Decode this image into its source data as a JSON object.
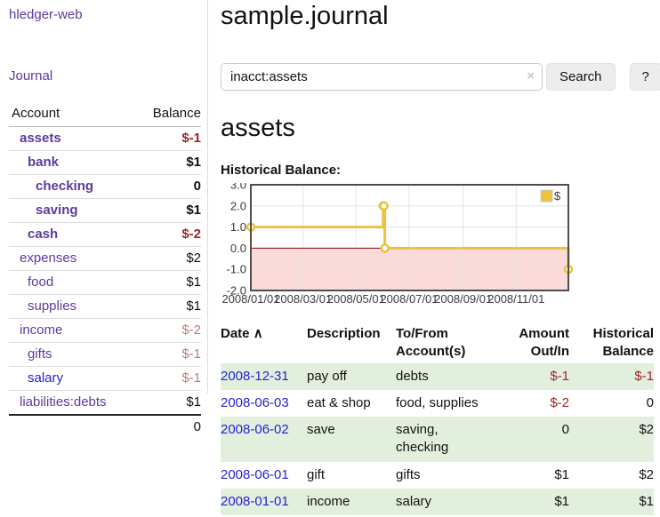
{
  "app": {
    "brand": "hledger-web"
  },
  "colors": {
    "link_purple": "#5d3a9e",
    "link_blue": "#2323d6",
    "negative_strong": "#a02429",
    "negative_soft": "#c07b7b",
    "row_stripe_green": "#e3efdd",
    "chart_line": "#edc240",
    "chart_negative_fill": "#fbdada",
    "chart_zero_line": "#990000",
    "chart_grid": "#e3e3e3",
    "chart_border": "#4d4d4d"
  },
  "sidebar": {
    "journal_label": "Journal",
    "accounts_table": {
      "headers": {
        "account": "Account",
        "balance": "Balance"
      },
      "rows": [
        {
          "name": "assets",
          "depth": 1,
          "bold": true,
          "link_color": "purple",
          "balance": "$-1",
          "balance_tone": "neg-strong"
        },
        {
          "name": "bank",
          "depth": 2,
          "bold": true,
          "link_color": "purple",
          "balance": "$1",
          "balance_tone": ""
        },
        {
          "name": "checking",
          "depth": 3,
          "bold": true,
          "link_color": "purple",
          "balance": "0",
          "balance_tone": ""
        },
        {
          "name": "saving",
          "depth": 3,
          "bold": true,
          "link_color": "purple",
          "balance": "$1",
          "balance_tone": ""
        },
        {
          "name": "cash",
          "depth": 2,
          "bold": true,
          "link_color": "purple",
          "balance": "$-2",
          "balance_tone": "neg-strong"
        },
        {
          "name": "expenses",
          "depth": 1,
          "bold": false,
          "link_color": "purple",
          "balance": "$2",
          "balance_tone": ""
        },
        {
          "name": "food",
          "depth": 2,
          "bold": false,
          "link_color": "purple",
          "balance": "$1",
          "balance_tone": ""
        },
        {
          "name": "supplies",
          "depth": 2,
          "bold": false,
          "link_color": "purple",
          "balance": "$1",
          "balance_tone": ""
        },
        {
          "name": "income",
          "depth": 1,
          "bold": false,
          "link_color": "purple",
          "balance": "$-2",
          "balance_tone": "neg-soft"
        },
        {
          "name": "gifts",
          "depth": 2,
          "bold": false,
          "link_color": "purple",
          "balance": "$-1",
          "balance_tone": "neg-soft"
        },
        {
          "name": "salary",
          "depth": 2,
          "bold": false,
          "link_color": "blue",
          "balance": "$-1",
          "balance_tone": "neg-soft"
        },
        {
          "name": "liabilities:debts",
          "depth": 1,
          "bold": false,
          "link_color": "purple",
          "balance": "$1",
          "balance_tone": ""
        }
      ],
      "total": "0"
    }
  },
  "main": {
    "title": "sample.journal",
    "search": {
      "value": "inacct:assets",
      "clear_icon": "×",
      "button_label": "Search",
      "help_label": "?"
    },
    "section_title": "assets",
    "chart_label": "Historical Balance:"
  },
  "chart_data": {
    "type": "line",
    "step": true,
    "series": [
      {
        "name": "$",
        "points": [
          [
            "2008-01-01",
            1
          ],
          [
            "2008-06-01",
            2
          ],
          [
            "2008-06-02",
            2
          ],
          [
            "2008-06-03",
            0
          ],
          [
            "2008-12-31",
            -1
          ]
        ]
      }
    ],
    "xlim": [
      "2008-01-01",
      "2008-12-31"
    ],
    "ylim": [
      -2,
      3
    ],
    "x_ticks": [
      {
        "d": "2008-01-01",
        "t": "2008/01/01"
      },
      {
        "d": "2008-03-01",
        "t": "2008/03/01"
      },
      {
        "d": "2008-05-01",
        "t": "2008/05/01"
      },
      {
        "d": "2008-07-01",
        "t": "2008/07/01"
      },
      {
        "d": "2008-09-01",
        "t": "2008/09/01"
      },
      {
        "d": "2008-11-01",
        "t": "2008/11/01"
      }
    ],
    "y_ticks": [
      {
        "v": 3,
        "t": "3.0"
      },
      {
        "v": 2,
        "t": "2.0"
      },
      {
        "v": 1,
        "t": "1.0"
      },
      {
        "v": 0,
        "t": "0.0"
      },
      {
        "v": -1,
        "t": "-1.0"
      },
      {
        "v": -2,
        "t": "-2.0"
      }
    ],
    "grid": true,
    "legend": {
      "label": "$",
      "position": "top-right"
    }
  },
  "register": {
    "headers": {
      "date": "Date",
      "sort_icon": "∧",
      "description": "Description",
      "accounts": "To/From Account(s)",
      "amount": "Amount Out/In",
      "balance": "Historical Balance"
    },
    "rows": [
      {
        "date": "2008-12-31",
        "description": "pay off",
        "accounts": "debts",
        "amount": "$-1",
        "amount_negative": true,
        "balance": "$-1",
        "balance_negative": true
      },
      {
        "date": "2008-06-03",
        "description": "eat & shop",
        "accounts": "food, supplies",
        "amount": "$-2",
        "amount_negative": true,
        "balance": "0",
        "balance_negative": false
      },
      {
        "date": "2008-06-02",
        "description": "save",
        "accounts": "saving, checking",
        "amount": "0",
        "amount_negative": false,
        "balance": "$2",
        "balance_negative": false
      },
      {
        "date": "2008-06-01",
        "description": "gift",
        "accounts": "gifts",
        "amount": "$1",
        "amount_negative": false,
        "balance": "$2",
        "balance_negative": false
      },
      {
        "date": "2008-01-01",
        "description": "income",
        "accounts": "salary",
        "amount": "$1",
        "amount_negative": false,
        "balance": "$1",
        "balance_negative": false
      }
    ]
  }
}
